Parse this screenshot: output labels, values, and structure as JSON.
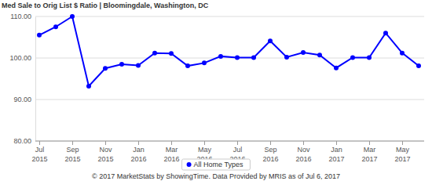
{
  "chart_data": {
    "type": "line",
    "title": "Med Sale to Orig List $ Ratio | Bloomingdale, Washington, DC",
    "categories": [
      "Jul 2015",
      null,
      "Sep 2015",
      null,
      "Nov 2015",
      null,
      "Jan 2016",
      null,
      "Mar 2016",
      null,
      "May 2016",
      null,
      "Jul 2016",
      null,
      "Sep 2016",
      null,
      "Nov 2016",
      null,
      "Jan 2017",
      null,
      "Mar 2017",
      null,
      "May 2017",
      null
    ],
    "series": [
      {
        "name": "All Home Types",
        "color": "#0000ff",
        "marker": "circle",
        "values": [
          105.5,
          107.5,
          110.0,
          93.2,
          97.5,
          98.5,
          98.2,
          101.2,
          101.1,
          98.1,
          98.8,
          100.4,
          100.1,
          100.1,
          104.1,
          100.2,
          101.3,
          100.7,
          97.6,
          100.1,
          100.1,
          106.0,
          101.2,
          98.1
        ]
      }
    ],
    "ylim": [
      80,
      110
    ],
    "yticks": [
      {
        "value": 80,
        "label": "80.00"
      },
      {
        "value": 90,
        "label": "90.00"
      },
      {
        "value": 100,
        "label": "100.00"
      },
      {
        "value": 110,
        "label": "110.00"
      }
    ],
    "grid": true,
    "legend": "bottom",
    "annotations": [
      "© 2017 MarketStats by ShowingTime. Data Provided by MRIS as of Jul 6, 2017"
    ]
  }
}
